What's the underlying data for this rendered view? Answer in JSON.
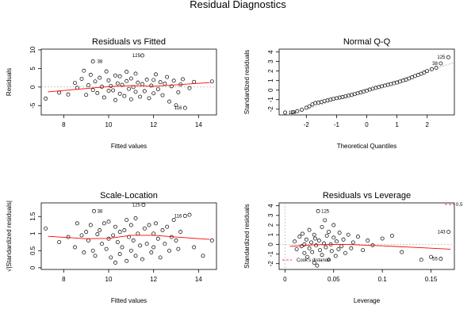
{
  "figure": {
    "title": "Residual Diagnostics"
  },
  "chart_data": [
    {
      "type": "scatter",
      "title": "Residuals vs Fitted",
      "xlabel": "Fitted values",
      "ylabel": "Residuals",
      "xlim": [
        7.0,
        14.8
      ],
      "ylim": [
        -7.5,
        10.2
      ],
      "xticks": [
        8,
        10,
        12,
        14
      ],
      "yticks": [
        -5,
        0,
        5,
        10
      ],
      "smoother_color": "#ff0000",
      "smoother": {
        "x": [
          7.3,
          9,
          10,
          11,
          12,
          13,
          14.5
        ],
        "y": [
          -1.3,
          -0.4,
          0.1,
          0.4,
          0.2,
          0.6,
          1.2
        ]
      },
      "annotations": [
        {
          "label": "125",
          "x": 11.55,
          "y": 8.5
        },
        {
          "label": "38",
          "x": 9.35,
          "y": 6.9
        },
        {
          "label": "116",
          "x": 13.4,
          "y": -5.6
        }
      ],
      "points": [
        [
          7.2,
          -3.1
        ],
        [
          7.8,
          -1.5
        ],
        [
          8.2,
          -2.0
        ],
        [
          8.5,
          1.1
        ],
        [
          8.6,
          -0.2
        ],
        [
          8.8,
          2.2
        ],
        [
          8.9,
          4.4
        ],
        [
          9.0,
          -2.1
        ],
        [
          9.1,
          0.5
        ],
        [
          9.2,
          3.3
        ],
        [
          9.3,
          -0.8
        ],
        [
          9.3,
          6.9
        ],
        [
          9.4,
          1.5
        ],
        [
          9.5,
          -1.6
        ],
        [
          9.6,
          2.5
        ],
        [
          9.7,
          0.1
        ],
        [
          9.8,
          -2.8
        ],
        [
          9.9,
          4.2
        ],
        [
          10.0,
          -1.0
        ],
        [
          10.0,
          1.8
        ],
        [
          10.1,
          0.3
        ],
        [
          10.2,
          -0.9
        ],
        [
          10.3,
          3.1
        ],
        [
          10.3,
          -3.5
        ],
        [
          10.4,
          1.0
        ],
        [
          10.5,
          -1.8
        ],
        [
          10.5,
          2.9
        ],
        [
          10.6,
          0.6
        ],
        [
          10.7,
          -2.4
        ],
        [
          10.8,
          1.6
        ],
        [
          10.8,
          4.1
        ],
        [
          10.9,
          -0.5
        ],
        [
          11.0,
          -3.3
        ],
        [
          11.0,
          2.3
        ],
        [
          11.1,
          0.0
        ],
        [
          11.2,
          -1.3
        ],
        [
          11.2,
          3.6
        ],
        [
          11.3,
          1.2
        ],
        [
          11.4,
          -2.6
        ],
        [
          11.5,
          0.8
        ],
        [
          11.5,
          8.5
        ],
        [
          11.6,
          -1.1
        ],
        [
          11.7,
          2.0
        ],
        [
          11.8,
          -3.0
        ],
        [
          11.9,
          0.4
        ],
        [
          12.0,
          1.9
        ],
        [
          12.0,
          -1.7
        ],
        [
          12.1,
          3.4
        ],
        [
          12.2,
          -0.6
        ],
        [
          12.3,
          1.3
        ],
        [
          12.4,
          -2.2
        ],
        [
          12.5,
          0.9
        ],
        [
          12.6,
          2.7
        ],
        [
          12.7,
          -3.9
        ],
        [
          12.8,
          0.2
        ],
        [
          12.9,
          1.7
        ],
        [
          13.0,
          -4.9
        ],
        [
          13.1,
          -1.4
        ],
        [
          13.2,
          0.7
        ],
        [
          13.3,
          2.1
        ],
        [
          13.4,
          -5.6
        ],
        [
          13.6,
          -0.3
        ],
        [
          13.8,
          1.4
        ],
        [
          14.6,
          1.5
        ]
      ]
    },
    {
      "type": "scatter",
      "title": "Normal Q-Q",
      "xlabel": "Theoretical Quantiles",
      "ylabel": "Standardized residuals",
      "xlim": [
        -2.9,
        2.9
      ],
      "ylim": [
        -2.6,
        4.3
      ],
      "xticks": [
        -2,
        -1,
        0,
        1,
        2
      ],
      "yticks": [
        -2,
        -1,
        0,
        1,
        2,
        3,
        4
      ],
      "reference_line": {
        "x": [
          -2.9,
          2.9
        ],
        "y": [
          -2.9,
          2.9
        ]
      },
      "n_points": 180,
      "annotations": [
        {
          "label": "125",
          "x": 2.7,
          "y": 3.45
        },
        {
          "label": "38",
          "x": 2.45,
          "y": 2.8
        },
        {
          "label": "116",
          "x": -2.7,
          "y": -2.35
        }
      ],
      "points": [
        [
          -2.7,
          -2.35
        ],
        [
          -2.45,
          -2.3
        ],
        [
          -2.3,
          -2.2
        ],
        [
          -2.15,
          -2.05
        ],
        [
          -2.0,
          -1.85
        ],
        [
          -1.9,
          -1.7
        ],
        [
          -1.8,
          -1.5
        ],
        [
          -1.7,
          -1.35
        ],
        [
          -1.6,
          -1.3
        ],
        [
          -1.5,
          -1.25
        ],
        [
          -1.4,
          -1.15
        ],
        [
          -1.3,
          -1.08
        ],
        [
          -1.2,
          -1.0
        ],
        [
          -1.1,
          -0.92
        ],
        [
          -1.0,
          -0.85
        ],
        [
          -0.9,
          -0.78
        ],
        [
          -0.8,
          -0.72
        ],
        [
          -0.7,
          -0.65
        ],
        [
          -0.6,
          -0.58
        ],
        [
          -0.5,
          -0.5
        ],
        [
          -0.4,
          -0.42
        ],
        [
          -0.3,
          -0.33
        ],
        [
          -0.2,
          -0.24
        ],
        [
          -0.1,
          -0.14
        ],
        [
          0.0,
          -0.05
        ],
        [
          0.1,
          0.06
        ],
        [
          0.2,
          0.15
        ],
        [
          0.3,
          0.24
        ],
        [
          0.4,
          0.32
        ],
        [
          0.5,
          0.4
        ],
        [
          0.6,
          0.48
        ],
        [
          0.7,
          0.56
        ],
        [
          0.8,
          0.64
        ],
        [
          0.9,
          0.72
        ],
        [
          1.0,
          0.8
        ],
        [
          1.1,
          0.9
        ],
        [
          1.2,
          1.0
        ],
        [
          1.3,
          1.1
        ],
        [
          1.4,
          1.22
        ],
        [
          1.5,
          1.35
        ],
        [
          1.6,
          1.48
        ],
        [
          1.7,
          1.6
        ],
        [
          1.8,
          1.72
        ],
        [
          1.9,
          1.85
        ],
        [
          2.0,
          2.0
        ],
        [
          2.15,
          2.2
        ],
        [
          2.3,
          2.35
        ],
        [
          2.45,
          2.8
        ],
        [
          2.7,
          3.45
        ]
      ]
    },
    {
      "type": "scatter",
      "title": "Scale-Location",
      "xlabel": "Fitted values",
      "ylabel": "√|Standardized residuals|",
      "xlim": [
        7.0,
        14.8
      ],
      "ylim": [
        -0.05,
        1.9
      ],
      "xticks": [
        8,
        10,
        12,
        14
      ],
      "yticks": [
        0.0,
        0.5,
        1.0,
        1.5
      ],
      "smoother_color": "#ff0000",
      "smoother": {
        "x": [
          7.3,
          9,
          10,
          11,
          12,
          13,
          14.5
        ],
        "y": [
          0.92,
          0.85,
          0.86,
          0.95,
          0.95,
          0.9,
          0.83
        ]
      },
      "annotations": [
        {
          "label": "125",
          "x": 11.55,
          "y": 1.84
        },
        {
          "label": "38",
          "x": 9.35,
          "y": 1.66
        },
        {
          "label": "116",
          "x": 13.4,
          "y": 1.52
        }
      ],
      "points": [
        [
          7.2,
          1.15
        ],
        [
          7.8,
          0.75
        ],
        [
          8.2,
          0.9
        ],
        [
          8.5,
          0.6
        ],
        [
          8.6,
          1.3
        ],
        [
          8.8,
          0.95
        ],
        [
          8.9,
          0.45
        ],
        [
          9.0,
          1.05
        ],
        [
          9.1,
          0.8
        ],
        [
          9.2,
          1.25
        ],
        [
          9.3,
          0.5
        ],
        [
          9.35,
          1.66
        ],
        [
          9.4,
          0.35
        ],
        [
          9.5,
          0.98
        ],
        [
          9.6,
          1.1
        ],
        [
          9.7,
          0.7
        ],
        [
          9.8,
          1.3
        ],
        [
          9.9,
          0.55
        ],
        [
          10.0,
          0.85
        ],
        [
          10.0,
          1.35
        ],
        [
          10.1,
          0.3
        ],
        [
          10.2,
          0.95
        ],
        [
          10.3,
          1.2
        ],
        [
          10.3,
          0.15
        ],
        [
          10.4,
          0.75
        ],
        [
          10.5,
          1.05
        ],
        [
          10.5,
          0.4
        ],
        [
          10.6,
          0.6
        ],
        [
          10.7,
          1.1
        ],
        [
          10.8,
          0.2
        ],
        [
          10.8,
          1.4
        ],
        [
          10.9,
          0.9
        ],
        [
          11.0,
          0.5
        ],
        [
          11.0,
          1.25
        ],
        [
          11.1,
          0.8
        ],
        [
          11.2,
          0.35
        ],
        [
          11.2,
          1.45
        ],
        [
          11.3,
          1.0
        ],
        [
          11.4,
          0.65
        ],
        [
          11.5,
          0.25
        ],
        [
          11.55,
          1.84
        ],
        [
          11.6,
          1.15
        ],
        [
          11.7,
          0.7
        ],
        [
          11.8,
          1.25
        ],
        [
          11.9,
          0.45
        ],
        [
          12.0,
          1.0
        ],
        [
          12.0,
          0.6
        ],
        [
          12.1,
          1.3
        ],
        [
          12.2,
          0.85
        ],
        [
          12.3,
          0.3
        ],
        [
          12.4,
          1.1
        ],
        [
          12.5,
          0.7
        ],
        [
          12.6,
          1.2
        ],
        [
          12.7,
          0.5
        ],
        [
          12.8,
          0.9
        ],
        [
          12.9,
          1.4
        ],
        [
          13.0,
          0.8
        ],
        [
          13.1,
          0.55
        ],
        [
          13.2,
          1.05
        ],
        [
          13.4,
          1.52
        ],
        [
          13.6,
          1.55
        ],
        [
          13.8,
          0.6
        ],
        [
          14.2,
          0.35
        ],
        [
          14.6,
          0.8
        ]
      ]
    },
    {
      "type": "scatter",
      "title": "Residuals vs Leverage",
      "xlabel": "Leverage",
      "ylabel": "Standardized residuals",
      "xlim": [
        -0.006,
        0.174
      ],
      "ylim": [
        -2.6,
        4.3
      ],
      "xticks": [
        0.0,
        0.05,
        0.1,
        0.15
      ],
      "yticks": [
        -2,
        -1,
        0,
        1,
        2,
        3,
        4
      ],
      "smoother_color": "#ff0000",
      "smoother": {
        "x": [
          0.005,
          0.03,
          0.06,
          0.1,
          0.14,
          0.17
        ],
        "y": [
          -0.2,
          -0.05,
          0.0,
          -0.15,
          -0.35,
          -0.5
        ]
      },
      "cooks_distance": {
        "label": "0.5",
        "legend_label": "Cook's distance",
        "line_color": "#ff0000"
      },
      "annotations": [
        {
          "label": "125",
          "x": 0.034,
          "y": 3.45
        },
        {
          "label": "143",
          "x": 0.168,
          "y": 1.3
        },
        {
          "label": "55",
          "x": 0.16,
          "y": -1.5
        }
      ],
      "points": [
        [
          0.01,
          0.3
        ],
        [
          0.012,
          -0.5
        ],
        [
          0.015,
          0.8
        ],
        [
          0.017,
          -0.2
        ],
        [
          0.018,
          1.1
        ],
        [
          0.02,
          -0.9
        ],
        [
          0.02,
          0.0
        ],
        [
          0.022,
          0.5
        ],
        [
          0.023,
          -1.3
        ],
        [
          0.025,
          1.5
        ],
        [
          0.025,
          -0.4
        ],
        [
          0.027,
          0.2
        ],
        [
          0.028,
          -0.8
        ],
        [
          0.03,
          1.0
        ],
        [
          0.03,
          -1.9
        ],
        [
          0.031,
          0.6
        ],
        [
          0.032,
          -0.1
        ],
        [
          0.033,
          -2.2
        ],
        [
          0.034,
          3.45
        ],
        [
          0.035,
          0.4
        ],
        [
          0.036,
          -0.6
        ],
        [
          0.038,
          1.8
        ],
        [
          0.038,
          -1.1
        ],
        [
          0.04,
          0.1
        ],
        [
          0.041,
          2.5
        ],
        [
          0.042,
          -0.3
        ],
        [
          0.043,
          0.9
        ],
        [
          0.045,
          -1.6
        ],
        [
          0.045,
          1.3
        ],
        [
          0.047,
          0.0
        ],
        [
          0.048,
          -0.7
        ],
        [
          0.05,
          0.7
        ],
        [
          0.05,
          2.0
        ],
        [
          0.052,
          -1.2
        ],
        [
          0.053,
          0.3
        ],
        [
          0.055,
          -0.5
        ],
        [
          0.056,
          1.2
        ],
        [
          0.058,
          -0.2
        ],
        [
          0.06,
          0.5
        ],
        [
          0.062,
          -0.9
        ],
        [
          0.065,
          1.0
        ],
        [
          0.068,
          -0.4
        ],
        [
          0.07,
          0.2
        ],
        [
          0.075,
          0.8
        ],
        [
          0.08,
          -0.6
        ],
        [
          0.085,
          0.4
        ],
        [
          0.09,
          -0.1
        ],
        [
          0.1,
          0.6
        ],
        [
          0.11,
          0.9
        ],
        [
          0.12,
          -0.8
        ],
        [
          0.14,
          -1.6
        ],
        [
          0.15,
          -1.3
        ],
        [
          0.16,
          -1.5
        ],
        [
          0.168,
          1.3
        ]
      ]
    }
  ]
}
